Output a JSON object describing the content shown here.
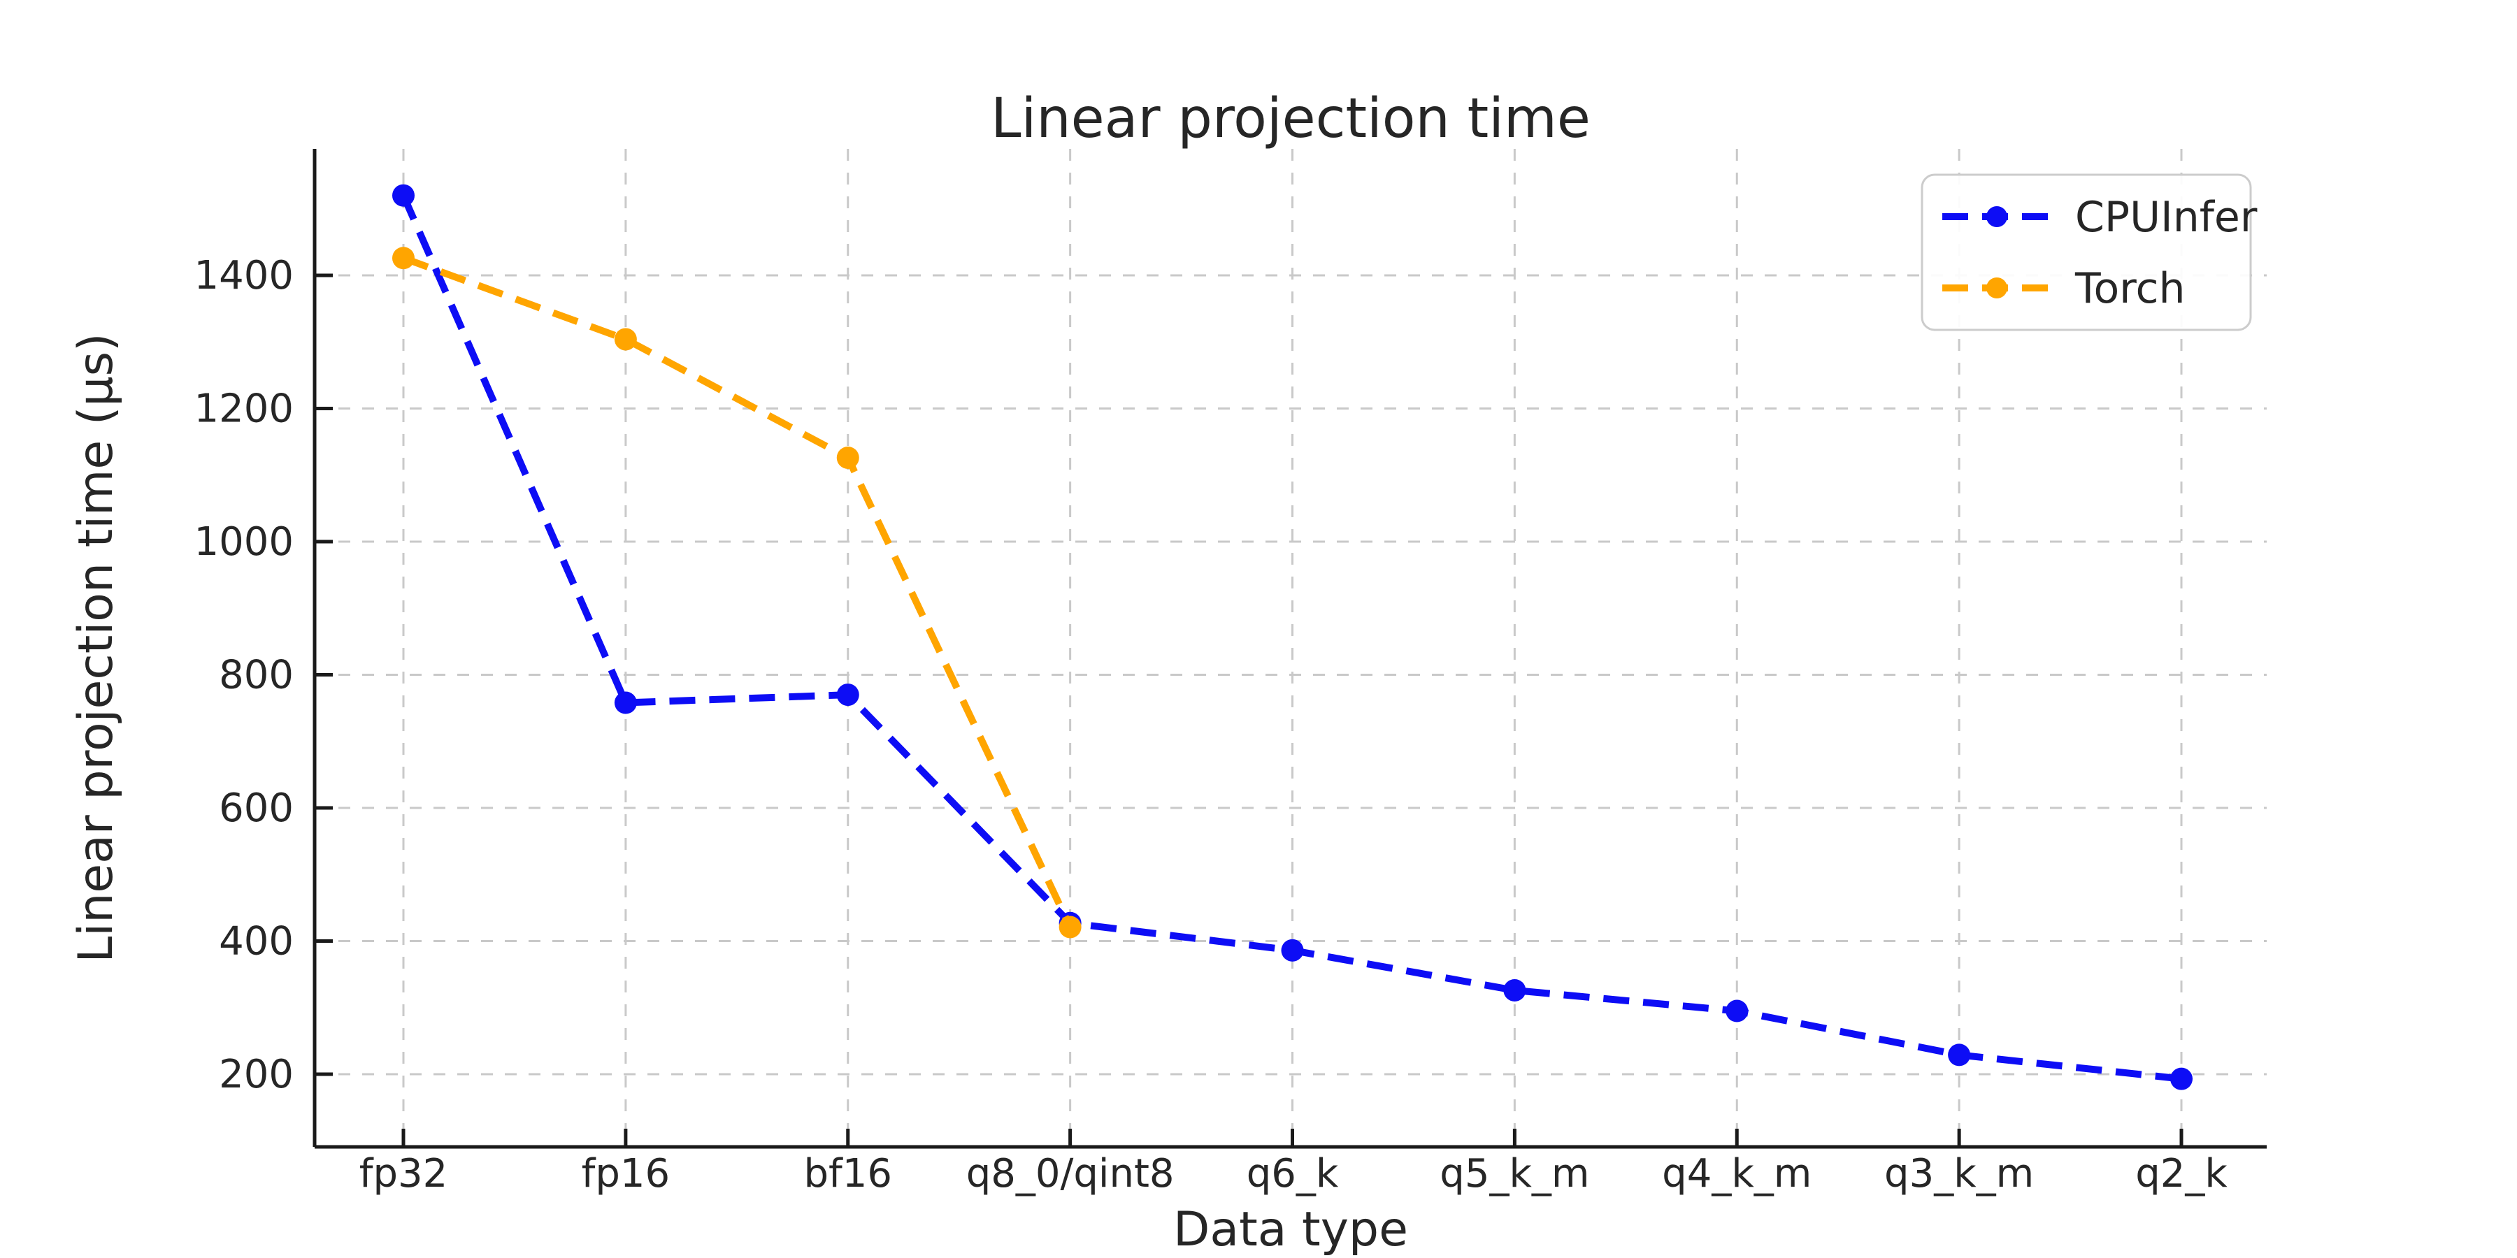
{
  "title": "Linear projection time",
  "chart_data": {
    "type": "line",
    "title": "Linear projection time",
    "xlabel": "Data type",
    "ylabel": "Linear projection time (μs)",
    "categories": [
      "fp32",
      "fp16",
      "bf16",
      "q8_0/qint8",
      "q6_k",
      "q5_k_m",
      "q4_k_m",
      "q3_k_m",
      "q2_k"
    ],
    "series": [
      {
        "name": "CPUInfer",
        "color": "#0d0df5",
        "values": [
          1520,
          758,
          770,
          427,
          386,
          326,
          295,
          229,
          193
        ]
      },
      {
        "name": "Torch",
        "color": "#ffa500",
        "values": [
          1426,
          1304,
          1126,
          421,
          null,
          null,
          null,
          null,
          null
        ]
      }
    ],
    "yticks": [
      200,
      400,
      600,
      800,
      1000,
      1200,
      1400
    ],
    "ylim": [
      90,
      1590
    ],
    "grid": true,
    "grid_style": "dashed",
    "line_style": "dashed",
    "marker": "circle",
    "legend_position": "upper right",
    "tick_direction": "in"
  },
  "legend": {
    "items": [
      {
        "label": "CPUInfer",
        "color": "#0d0df5"
      },
      {
        "label": "Torch",
        "color": "#ffa500"
      }
    ]
  }
}
